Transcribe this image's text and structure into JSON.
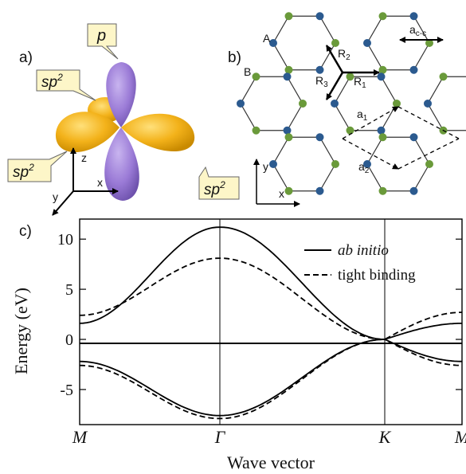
{
  "panel_a": {
    "label": "a)",
    "orbital_labels": {
      "p": "p",
      "sp2_base": "sp",
      "sp2_exp": "2"
    },
    "axes": {
      "x": "x",
      "y": "y",
      "z": "z"
    }
  },
  "panel_b": {
    "label": "b)",
    "sublattice_labels": {
      "a": "A",
      "b": "B"
    },
    "vectors": {
      "R1": {
        "base": "R",
        "sub": "1"
      },
      "R2": {
        "base": "R",
        "sub": "2"
      },
      "R3": {
        "base": "R",
        "sub": "3"
      },
      "a1": {
        "base": "a",
        "sub": "1"
      },
      "a2": {
        "base": "a",
        "sub": "2"
      },
      "acc": {
        "base": "a",
        "sub": "c-c"
      }
    },
    "axes": {
      "x": "x",
      "y": "y"
    },
    "colors": {
      "site_a": "#6a9a3a",
      "site_b": "#2b5a8f"
    }
  },
  "panel_c": {
    "label": "c)",
    "ylabel": "Energy (eV)",
    "xlabel": "Wave vector",
    "legend": {
      "solid": "ab initio",
      "dashed": "tight binding"
    },
    "yticks": [
      "10",
      "5",
      "0",
      "-5"
    ],
    "xticks": [
      "M",
      "Γ",
      "K",
      "M"
    ]
  },
  "chart_data": {
    "type": "line",
    "x": [
      "M",
      "Γ",
      "K",
      "M"
    ],
    "ylim": [
      -8.5,
      12
    ],
    "series": [
      {
        "name": "ab initio",
        "style": "solid",
        "values": [
          1.6,
          11.2,
          0.0,
          1.6
        ]
      },
      {
        "name": "ab initio",
        "style": "solid",
        "values": [
          -2.2,
          -7.6,
          0.0,
          -2.2
        ]
      },
      {
        "name": "tight binding",
        "style": "dashed",
        "values": [
          2.4,
          8.1,
          0.0,
          2.7
        ]
      },
      {
        "name": "tight binding",
        "style": "dashed",
        "values": [
          -2.6,
          -7.9,
          0.0,
          -2.6
        ]
      }
    ]
  }
}
